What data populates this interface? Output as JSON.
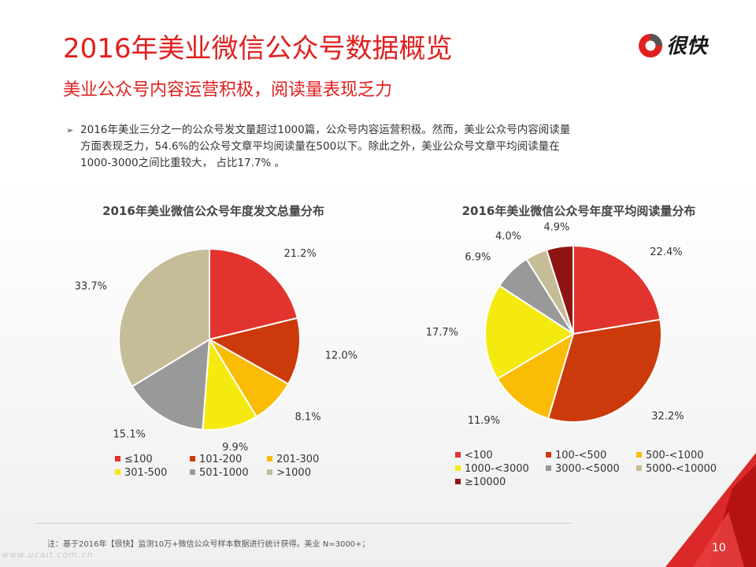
{
  "header": {
    "title": "2016年美业微信公众号数据概览",
    "subtitle": "美业公众号内容运营积极，阅读量表现乏力",
    "logo_text": "很快",
    "logo_icon": "red-circle-logo-icon"
  },
  "body": {
    "bullet_icon": "arrow-bullet-icon",
    "bullet_text": "2016年美业三分之一的公众号发文量超过1000篇，公众号内容运营积极。然而，美业公众号内容阅读量方面表现乏力，54.6%的公众号文章平均阅读量在500以下。除此之外，美业公众号文章平均阅读量在1000-3000之间比重较大， 占比17.7% 。"
  },
  "chart_data": [
    {
      "type": "pie",
      "title": "2016年美业微信公众号年度发文总量分布",
      "categories": [
        "≤100",
        "101-200",
        "201-300",
        "301-500",
        "501-1000",
        ">1000"
      ],
      "values": [
        21.2,
        12.0,
        8.1,
        9.9,
        15.1,
        33.7
      ],
      "value_labels": [
        "21.2%",
        "12.0%",
        "8.1%",
        "9.9%",
        "15.1%",
        "33.7%"
      ],
      "colors": [
        "#e2342e",
        "#cc3a0c",
        "#fbbc05",
        "#f5ea0f",
        "#999999",
        "#c6bc98"
      ],
      "legend_placement": "bottom"
    },
    {
      "type": "pie",
      "title": "2016年美业微信公众号年度平均阅读量分布",
      "categories": [
        "<100",
        "100-<500",
        "500-<1000",
        "1000-<3000",
        "3000-<5000",
        "5000-<10000",
        "≥10000"
      ],
      "values": [
        22.4,
        32.2,
        11.9,
        17.7,
        6.9,
        4.0,
        4.9
      ],
      "value_labels": [
        "22.4%",
        "32.2%",
        "11.9%",
        "17.7%",
        "6.9%",
        "4.0%",
        "4.9%"
      ],
      "colors": [
        "#e2342e",
        "#cc3a0c",
        "#fbbc05",
        "#f5ea0f",
        "#999999",
        "#c6bc98",
        "#8e1414"
      ],
      "legend_placement": "bottom"
    }
  ],
  "footer": {
    "footnote": "注：基于2016年【很快】监测10万+微信公众号样本数据进行统计获得。美业 N=3000+；",
    "watermark": "www.ucait.com.cn",
    "page_number": "10"
  }
}
